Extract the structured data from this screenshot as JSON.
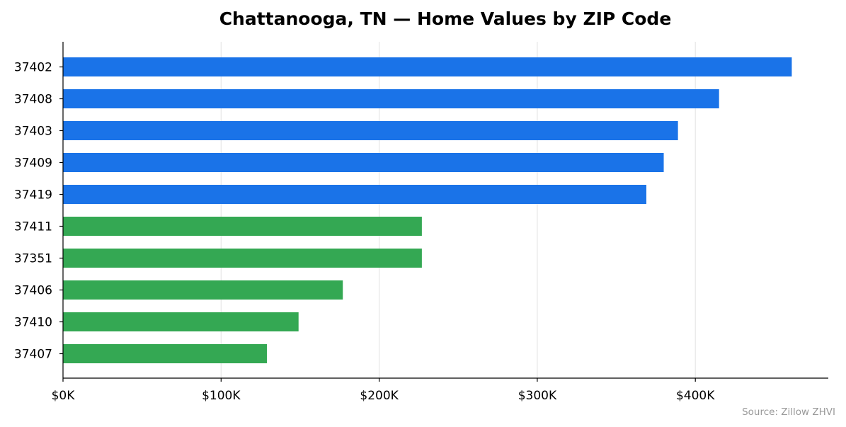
{
  "chart_data": {
    "type": "bar",
    "orientation": "horizontal",
    "title": "Chattanooga, TN — Home Values by ZIP Code",
    "xlabel": "",
    "ylabel": "",
    "source": "Source: Zillow ZHVI",
    "categories": [
      "37402",
      "37408",
      "37403",
      "37409",
      "37419",
      "37411",
      "37351",
      "37406",
      "37410",
      "37407"
    ],
    "values": [
      461000,
      415000,
      389000,
      380000,
      369000,
      227000,
      227000,
      177000,
      149000,
      129000
    ],
    "bar_colors": [
      "#1a73e8",
      "#1a73e8",
      "#1a73e8",
      "#1a73e8",
      "#1a73e8",
      "#34a853",
      "#34a853",
      "#34a853",
      "#34a853",
      "#34a853"
    ],
    "xticks": [
      0,
      100000,
      200000,
      300000,
      400000
    ],
    "xtick_labels": [
      "$0K",
      "$100K",
      "$200K",
      "$300K",
      "$400K"
    ],
    "xlim": [
      0,
      485000
    ],
    "grid": "vertical",
    "legend": "none"
  }
}
